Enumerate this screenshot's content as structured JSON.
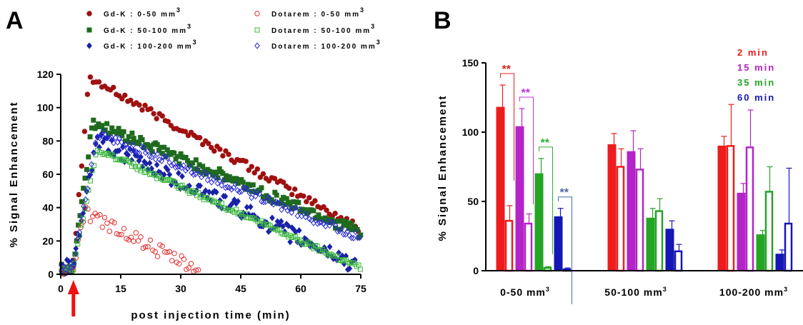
{
  "panels": {
    "a": "A",
    "b": "B"
  },
  "chart_data": [
    {
      "type": "scatter",
      "panel": "A",
      "xlabel": "post injection time (min)",
      "ylabel": "% Signal Enhancement",
      "xlim": [
        0,
        75
      ],
      "ylim": [
        0,
        120
      ],
      "xticks": [
        0,
        15,
        30,
        45,
        60,
        75
      ],
      "yticks": [
        0,
        20,
        40,
        60,
        80,
        100,
        120
      ],
      "injection_marker_x": 3,
      "legend_placement": "top",
      "series": [
        {
          "name": "Gd-K : 0-50 mm",
          "sup": "3",
          "color": "#a01010",
          "marker": "filled-circle",
          "curve": {
            "baseline": 3,
            "peak": 118,
            "peak_t": 7,
            "end": 27,
            "tend": 75,
            "shape": "linear",
            "noise": 2.5,
            "step": 0.72
          }
        },
        {
          "name": "Gd-K : 50-100 mm",
          "sup": "3",
          "color": "#1e6b1e",
          "marker": "filled-square",
          "curve": {
            "baseline": 4,
            "peak": 91,
            "peak_t": 8,
            "end": 25,
            "tend": 75,
            "shape": "linear",
            "noise": 3.5,
            "step": 0.42
          }
        },
        {
          "name": "Gd-K : 100-200 mm",
          "sup": "3",
          "color": "#1a22a8",
          "marker": "filled-diamond",
          "curve": {
            "baseline": 4,
            "peak": 80,
            "peak_t": 9,
            "end": 5,
            "tend": 74,
            "shape": "linear",
            "noise": 5,
            "step": 0.45
          }
        },
        {
          "name": "Dotarem : 0-50 mm",
          "sup": "3",
          "color": "#e23030",
          "marker": "open-circle",
          "curve": {
            "baseline": 2,
            "peak": 37,
            "peak_t": 6,
            "end": 1,
            "tend": 35,
            "shape": "linear",
            "noise": 4,
            "step": 0.6
          }
        },
        {
          "name": "Dotarem : 50-100 mm",
          "sup": "3",
          "color": "#3cb83c",
          "marker": "open-square",
          "curve": {
            "baseline": 3,
            "peak": 75,
            "peak_t": 9,
            "end": 4,
            "tend": 75,
            "shape": "linear",
            "noise": 1.5,
            "step": 0.45
          }
        },
        {
          "name": "Dotarem : 100-200 mm",
          "sup": "3",
          "color": "#2a2ad0",
          "marker": "open-diamond",
          "curve": {
            "baseline": 3,
            "peak": 85,
            "peak_t": 9,
            "end": 22,
            "tend": 75,
            "shape": "linear",
            "noise": 2.5,
            "step": 0.5
          }
        }
      ]
    },
    {
      "type": "bar",
      "panel": "B",
      "ylabel": "% Signal Enhancement",
      "ylim": [
        0,
        150
      ],
      "yticks": [
        0,
        50,
        100,
        150
      ],
      "categories": [
        {
          "label": "0-50 mm",
          "sup": "3"
        },
        {
          "label": "50-100 mm",
          "sup": "3"
        },
        {
          "label": "100-200 mm",
          "sup": "3"
        }
      ],
      "legend_placement": "top-right",
      "series": [
        {
          "name": "2 min",
          "color": "#ee1c1c",
          "filled": {
            "values": [
              118,
              91,
              90
            ],
            "errors": [
              16,
              8,
              7
            ]
          },
          "open": {
            "values": [
              36,
              75,
              90
            ],
            "errors": [
              11,
              13,
              30
            ]
          }
        },
        {
          "name": "15 min",
          "color": "#b424c8",
          "filled": {
            "values": [
              104,
              86,
              56
            ],
            "errors": [
              13,
              15,
              7
            ]
          },
          "open": {
            "values": [
              34,
              73,
              89
            ],
            "errors": [
              7,
              15,
              27
            ]
          }
        },
        {
          "name": "35 min",
          "color": "#25a525",
          "filled": {
            "values": [
              70,
              38,
              26
            ],
            "errors": [
              11,
              7,
              3
            ]
          },
          "open": {
            "values": [
              2,
              43,
              57
            ],
            "errors": [
              1,
              9,
              18
            ]
          }
        },
        {
          "name": "60 min",
          "color": "#1616b4",
          "filled": {
            "values": [
              39,
              30,
              12
            ],
            "errors": [
              6,
              6,
              3
            ]
          },
          "open": {
            "values": [
              1,
              14,
              34
            ],
            "errors": [
              1,
              5,
              40
            ]
          }
        }
      ],
      "significance": [
        {
          "label": "**",
          "color": "#e02020",
          "series": 0
        },
        {
          "label": "**",
          "color": "#c030e0",
          "series": 1
        },
        {
          "label": "**",
          "color": "#30b030",
          "series": 2
        },
        {
          "label": "**",
          "color": "#4a6aa8",
          "series": 3
        }
      ]
    }
  ]
}
